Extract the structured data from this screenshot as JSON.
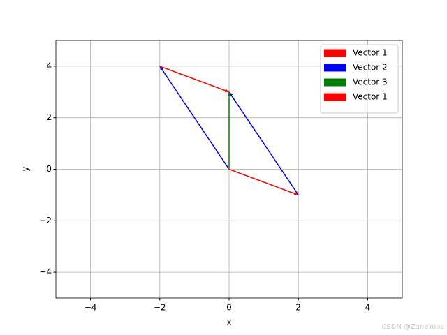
{
  "chart_data": {
    "type": "quiver",
    "xlabel": "x",
    "ylabel": "y",
    "xlim": [
      -5,
      5
    ],
    "ylim": [
      -5,
      5
    ],
    "xticks": [
      {
        "value": -4,
        "label": "−4"
      },
      {
        "value": -2,
        "label": "−2"
      },
      0,
      2,
      4
    ],
    "yticks": [
      {
        "value": -4,
        "label": "−4"
      },
      {
        "value": -2,
        "label": "−2"
      },
      0,
      2,
      4
    ],
    "grid": true,
    "legend": "upper right",
    "series": [
      {
        "name": "Vector 1",
        "color": "#ff0000",
        "x": [
          0
        ],
        "y": [
          0
        ],
        "u": [
          2
        ],
        "v": [
          -1
        ]
      },
      {
        "name": "Vector 2",
        "color": "#0000ff",
        "x": [
          0,
          2
        ],
        "y": [
          0,
          -1
        ],
        "u": [
          -2,
          -2
        ],
        "v": [
          4,
          4
        ]
      },
      {
        "name": "Vector 3",
        "color": "#008000",
        "x": [
          0
        ],
        "y": [
          0
        ],
        "u": [
          0
        ],
        "v": [
          3
        ]
      },
      {
        "name": "Vector 1",
        "color": "#ff0000",
        "x": [
          -2
        ],
        "y": [
          4
        ],
        "u": [
          2
        ],
        "v": [
          -1
        ]
      }
    ],
    "watermark": "CSDN @ZaneYooc"
  }
}
